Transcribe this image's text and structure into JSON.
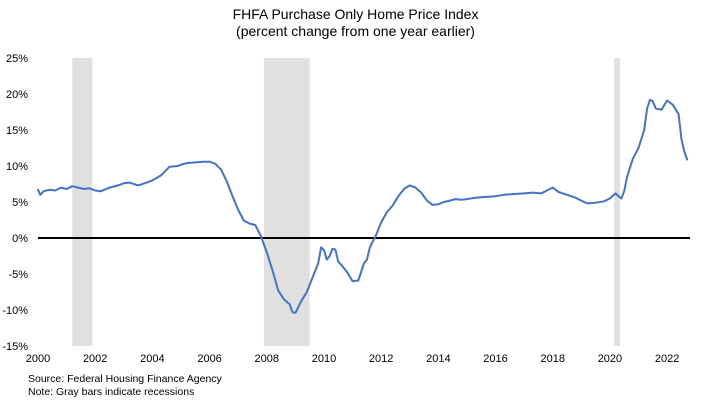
{
  "title": "FHFA Purchase Only Home Price Index",
  "subtitle": "(percent change from one year earlier)",
  "notes": {
    "source": "Source: Federal Housing Finance Agency",
    "recessions": "Note: Gray bars indicate recessions"
  },
  "chart_data": {
    "type": "line",
    "title": "FHFA Purchase Only Home Price Index",
    "subtitle": "(percent change from one year earlier)",
    "xlabel": "",
    "ylabel": "",
    "xlim": [
      2000,
      2022.8
    ],
    "ylim": [
      -15,
      25
    ],
    "x_ticks": [
      2000,
      2002,
      2004,
      2006,
      2008,
      2010,
      2012,
      2014,
      2016,
      2018,
      2020,
      2022
    ],
    "x_tick_labels": [
      "2000",
      "2002",
      "2004",
      "2006",
      "2008",
      "2010",
      "2012",
      "2014",
      "2016",
      "2018",
      "2020",
      "2022"
    ],
    "y_ticks": [
      -15,
      -10,
      -5,
      0,
      5,
      10,
      15,
      20,
      25
    ],
    "y_tick_labels": [
      "-15%",
      "-10%",
      "-5%",
      "0%",
      "5%",
      "10%",
      "15%",
      "20%",
      "25%"
    ],
    "grid": false,
    "legend": "none",
    "line_color": "#4472C4",
    "zero_line_color": "#000000",
    "recession_color": "#E0E0E0",
    "recessions": [
      [
        2001.2,
        2001.9
      ],
      [
        2007.9,
        2009.5
      ],
      [
        2020.15,
        2020.35
      ]
    ],
    "series": [
      {
        "x": [
          2000.0,
          2000.08,
          2000.2,
          2000.4,
          2000.6,
          2000.8,
          2001.0,
          2001.2,
          2001.4,
          2001.6,
          2001.8,
          2002.0,
          2002.2,
          2002.5,
          2002.8,
          2003.0,
          2003.2,
          2003.5,
          2003.8,
          2004.0,
          2004.3,
          2004.6,
          2004.9,
          2005.0,
          2005.2,
          2005.5,
          2005.8,
          2006.0,
          2006.2,
          2006.4,
          2006.6,
          2006.8,
          2007.0,
          2007.2,
          2007.4,
          2007.6,
          2007.8,
          2008.0,
          2008.2,
          2008.4,
          2008.6,
          2008.8,
          2008.9,
          2009.0,
          2009.2,
          2009.4,
          2009.6,
          2009.8,
          2009.9,
          2010.0,
          2010.1,
          2010.2,
          2010.3,
          2010.4,
          2010.5,
          2010.6,
          2010.8,
          2011.0,
          2011.2,
          2011.4,
          2011.5,
          2011.6,
          2011.7,
          2011.8,
          2012.0,
          2012.2,
          2012.4,
          2012.6,
          2012.8,
          2013.0,
          2013.2,
          2013.4,
          2013.6,
          2013.8,
          2014.0,
          2014.2,
          2014.4,
          2014.6,
          2014.8,
          2015.0,
          2015.3,
          2015.6,
          2016.0,
          2016.3,
          2016.6,
          2017.0,
          2017.3,
          2017.6,
          2017.9,
          2018.0,
          2018.2,
          2018.5,
          2018.8,
          2019.0,
          2019.2,
          2019.5,
          2019.8,
          2020.0,
          2020.2,
          2020.3,
          2020.4,
          2020.5,
          2020.6,
          2020.8,
          2021.0,
          2021.2,
          2021.3,
          2021.4,
          2021.5,
          2021.6,
          2021.8,
          2022.0,
          2022.2,
          2022.4,
          2022.5,
          2022.6,
          2022.7
        ],
        "y": [
          6.7,
          6.0,
          6.5,
          6.7,
          6.6,
          7.0,
          6.8,
          7.2,
          7.0,
          6.8,
          6.9,
          6.6,
          6.5,
          7.0,
          7.3,
          7.6,
          7.7,
          7.3,
          7.7,
          8.0,
          8.7,
          9.9,
          10.0,
          10.2,
          10.4,
          10.5,
          10.6,
          10.6,
          10.3,
          9.5,
          7.9,
          5.8,
          3.9,
          2.4,
          2.0,
          1.8,
          0.2,
          -2.0,
          -4.5,
          -7.3,
          -8.5,
          -9.2,
          -10.3,
          -10.4,
          -8.8,
          -7.5,
          -5.5,
          -3.5,
          -1.3,
          -1.7,
          -3.0,
          -2.5,
          -1.5,
          -1.6,
          -3.3,
          -3.7,
          -4.7,
          -6.0,
          -5.9,
          -3.5,
          -3.0,
          -1.4,
          -0.5,
          0.2,
          2.2,
          3.6,
          4.5,
          5.8,
          6.8,
          7.3,
          7.0,
          6.3,
          5.2,
          4.6,
          4.7,
          5.0,
          5.2,
          5.4,
          5.3,
          5.4,
          5.6,
          5.7,
          5.8,
          6.0,
          6.1,
          6.2,
          6.3,
          6.2,
          6.8,
          7.0,
          6.4,
          6.0,
          5.6,
          5.2,
          4.8,
          4.9,
          5.1,
          5.5,
          6.2,
          5.8,
          5.5,
          6.5,
          8.5,
          11.0,
          12.5,
          15.0,
          18.0,
          19.2,
          19.0,
          18.0,
          17.8,
          19.1,
          18.5,
          17.2,
          13.8,
          12.0,
          10.9
        ]
      }
    ]
  }
}
